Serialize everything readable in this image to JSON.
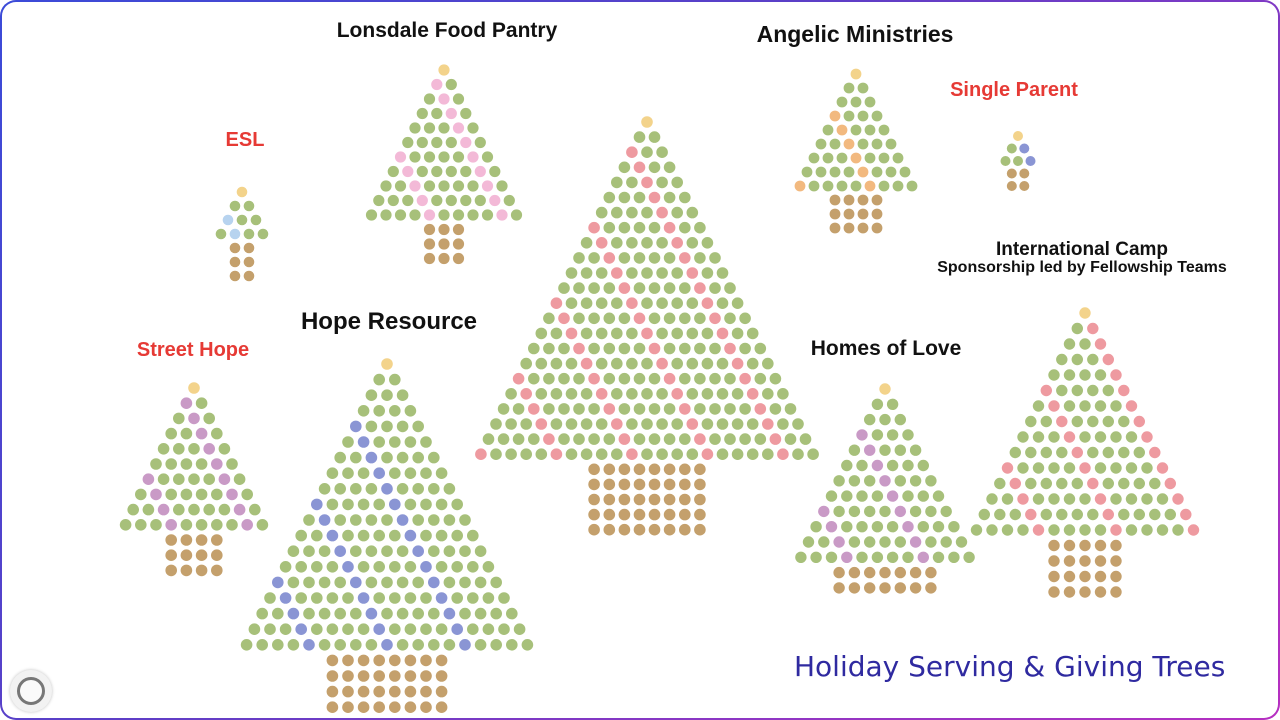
{
  "title": "Holiday Serving & Giving Trees",
  "colors": {
    "green": "#a7c07a",
    "trunk": "#c4a06c",
    "star": "#f3d38b",
    "pink": "#f3b9d7",
    "coral": "#ee9aa0",
    "orange": "#f2b97f",
    "blue": "#8a95d4",
    "lightblue": "#b7d3ef",
    "purple": "#c99ac6",
    "title": "#2f2aa0",
    "red_label": "#e63a35"
  },
  "trees": [
    {
      "name": "Lonsdale Food Pantry",
      "label_color": "black",
      "tree_rows": 10,
      "trunk_rows": 3,
      "trunk_width": 3,
      "ornament_color": "pink"
    },
    {
      "name": "Angelic Ministries",
      "label_color": "black",
      "tree_rows": 8,
      "trunk_rows": 3,
      "trunk_width": 4,
      "ornament_color": "orange"
    },
    {
      "name": "Single Parent",
      "label_color": "red",
      "tree_rows": 2,
      "trunk_rows": 2,
      "trunk_width": 2,
      "ornament_color": "blue"
    },
    {
      "name": "ESL",
      "label_color": "red",
      "tree_rows": 3,
      "trunk_rows": 3,
      "trunk_width": 2,
      "ornament_color": "lightblue"
    },
    {
      "name": "Hope Resource",
      "label_color": "black",
      "tree_rows": 18,
      "trunk_rows": 4,
      "trunk_width": 8,
      "ornament_color": "blue"
    },
    {
      "name": "Street Hope",
      "label_color": "red",
      "tree_rows": 9,
      "trunk_rows": 3,
      "trunk_width": 4,
      "ornament_color": "purple"
    },
    {
      "name": "Homes of Love",
      "label_color": "black",
      "tree_rows": 11,
      "trunk_rows": 2,
      "trunk_width": 7,
      "ornament_color": "purple"
    },
    {
      "name": "International Camp\nSponsorship led by Fellowship Teams",
      "label_color": "black",
      "tree_rows": 14,
      "trunk_rows": 4,
      "trunk_width": 5,
      "ornament_color": "coral"
    },
    {
      "name": "",
      "label_color": "black",
      "tree_rows": 22,
      "trunk_rows": 5,
      "trunk_width": 8,
      "ornament_color": "coral"
    }
  ]
}
